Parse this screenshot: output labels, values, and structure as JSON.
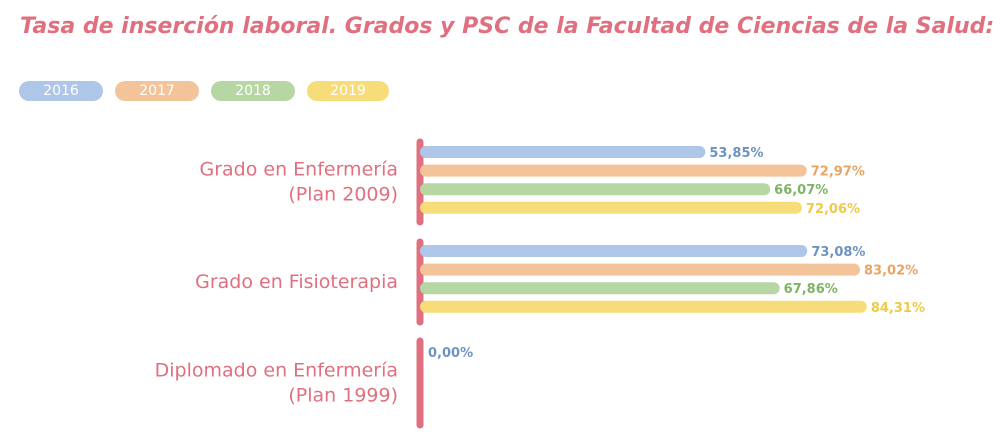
{
  "chart_data": {
    "type": "bar",
    "orientation": "horizontal",
    "title": "Tasa de inserción laboral. Grados y PSC de la Facultad de Ciencias de la Salud:",
    "categories": [
      [
        "Grado en Enfermería",
        "(Plan 2009)"
      ],
      [
        "Grado en Fisioterapia"
      ],
      [
        "Diplomado en Enfermería",
        "(Plan 1999)"
      ]
    ],
    "series": [
      {
        "name": "2016",
        "color": "#aec6e8",
        "label_color": "#6d93c2",
        "values": [
          53.85,
          73.08,
          null
        ],
        "labels": [
          "53,85%",
          "73,08%",
          "0,00%"
        ]
      },
      {
        "name": "2017",
        "color": "#f3c49a",
        "label_color": "#e9a464",
        "values": [
          72.97,
          83.02,
          null
        ],
        "labels": [
          "72,97%",
          "83,02%",
          ""
        ]
      },
      {
        "name": "2018",
        "color": "#b6d6a3",
        "label_color": "#7fb464",
        "values": [
          66.07,
          67.86,
          null
        ],
        "labels": [
          "66,07%",
          "67,86%",
          ""
        ]
      },
      {
        "name": "2019",
        "color": "#f7dc7a",
        "label_color": "#eecb46",
        "values": [
          72.06,
          84.31,
          null
        ],
        "labels": [
          "72,06%",
          "84,31%",
          ""
        ]
      }
    ],
    "xlim": [
      0,
      100
    ],
    "grid": false,
    "legend": "top-left",
    "accent_color": "#e0707f"
  }
}
